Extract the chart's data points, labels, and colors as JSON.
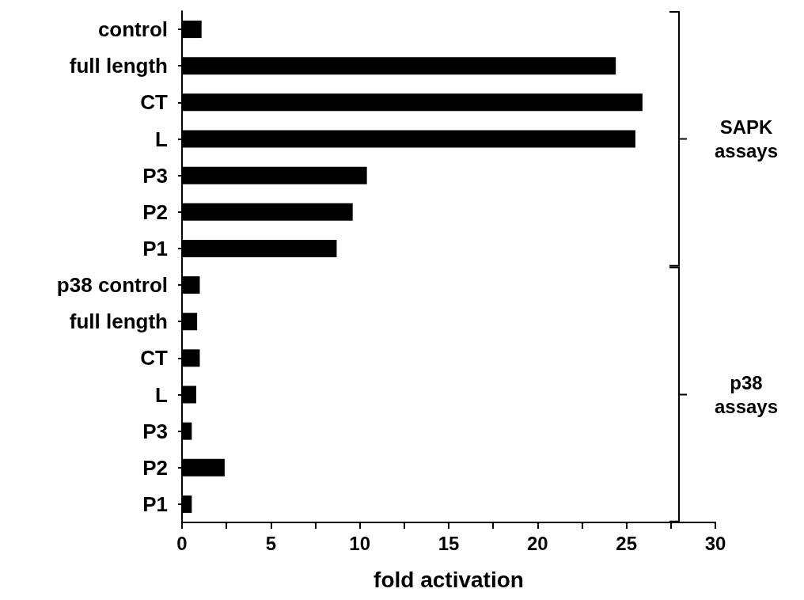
{
  "chart_data": {
    "type": "bar",
    "orientation": "horizontal",
    "xlabel": "fold activation",
    "categories": [
      "control",
      "full length",
      "CT",
      "L",
      "P3",
      "P2",
      "P1",
      "p38 control",
      "full length",
      "CT",
      "L",
      "P3",
      "P2",
      "P1"
    ],
    "values": [
      1.1,
      24.4,
      25.9,
      25.5,
      10.4,
      9.6,
      8.7,
      1.0,
      0.85,
      1.0,
      0.8,
      0.55,
      2.4,
      0.55
    ],
    "color": "#000000",
    "xlim": [
      0,
      30
    ],
    "xticks": [
      0,
      {
        "value": 2.5,
        "label": null
      },
      5,
      {
        "value": 7.5,
        "label": null
      },
      10,
      {
        "value": 12.5,
        "label": null
      },
      15,
      {
        "value": 17.5,
        "label": null
      },
      20,
      {
        "value": 22.5,
        "label": null
      },
      25,
      {
        "value": 27.5,
        "label": null
      },
      30
    ],
    "annotations": [
      "SAPK assays",
      "p38 assays"
    ],
    "grid": false
  }
}
